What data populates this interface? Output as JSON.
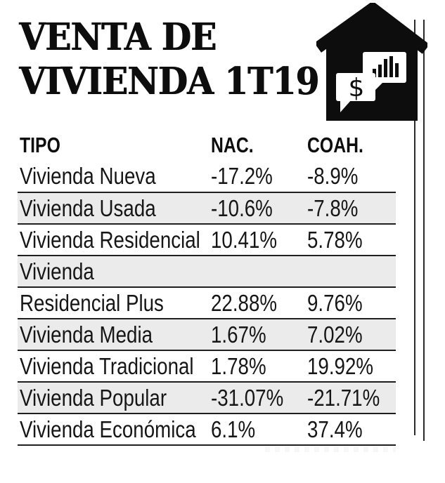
{
  "title": {
    "line1": "VENTA DE",
    "line2": "VIVIENDA 1T19"
  },
  "icons": {
    "house_icon": "house-with-speech-bubbles",
    "dollar_symbol": "$",
    "bar_chart_bubble": "bar-chart-speech-bubble"
  },
  "chart_data": {
    "type": "table",
    "title": "VENTA DE VIVIENDA 1T19",
    "columns": [
      "TIPO",
      "NAC.",
      "COAH."
    ],
    "rows": [
      {
        "label": "Vivienda Nueva",
        "nac": "-17.2%",
        "coah": "-8.9%"
      },
      {
        "label": "Vivienda Usada",
        "nac": "-10.6%",
        "coah": "-7.8%"
      },
      {
        "label": "Vivienda Residencial",
        "nac": "10.41%",
        "coah": "5.78%"
      },
      {
        "label": "Vivienda",
        "nac": "",
        "coah": ""
      },
      {
        "label": "Residencial Plus",
        "nac": "22.88%",
        "coah": "9.76%"
      },
      {
        "label": "Vivienda Media",
        "nac": "1.67%",
        "coah": "7.02%"
      },
      {
        "label": "Vivienda Tradicional",
        "nac": "1.78%",
        "coah": "19.92%"
      },
      {
        "label": "Vivienda Popular",
        "nac": "-31.07%",
        "coah": "-21.71%"
      },
      {
        "label": "Vivienda Económica",
        "nac": "6.1%",
        "coah": "37.4%"
      }
    ]
  },
  "colors": {
    "text": "#0d0d0d",
    "row_shade": "#ebebeb",
    "rule": "#1f1f1f",
    "icon": "#0d0d0d"
  }
}
